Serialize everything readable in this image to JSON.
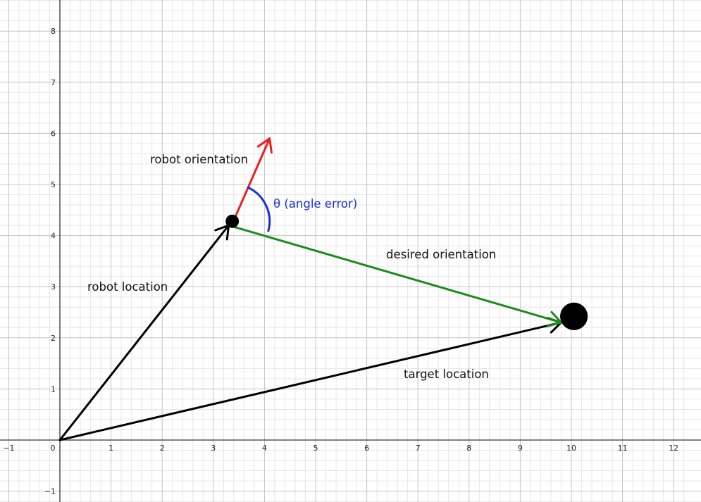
{
  "axes": {
    "x_ticks": [
      "−1",
      "0",
      "1",
      "2",
      "3",
      "4",
      "5",
      "6",
      "7",
      "8",
      "9",
      "10",
      "11",
      "12"
    ],
    "y_ticks": [
      "−1",
      "1",
      "2",
      "3",
      "4",
      "5",
      "6",
      "7",
      "8"
    ],
    "xlim": [
      -1.17,
      12.38
    ],
    "ylim": [
      -1.2,
      8.6
    ],
    "minor_grid_per_unit": 5
  },
  "vectors": [
    {
      "id": "robot-location",
      "from": [
        0,
        0
      ],
      "to": [
        3.3,
        4.2
      ],
      "color": "#000000"
    },
    {
      "id": "target-location",
      "from": [
        0,
        0
      ],
      "to": [
        9.8,
        2.3
      ],
      "color": "#000000"
    },
    {
      "id": "desired-orientation",
      "from": [
        3.3,
        4.2
      ],
      "to": [
        9.8,
        2.3
      ],
      "color": "#1a8c1a"
    },
    {
      "id": "robot-orientation",
      "from": [
        3.4,
        4.3
      ],
      "to": [
        4.1,
        5.9
      ],
      "color": "#e8211c"
    }
  ],
  "points": [
    {
      "id": "robot",
      "at": [
        3.37,
        4.28
      ],
      "radius": 0.13
    },
    {
      "id": "target",
      "at": [
        10.05,
        2.42
      ],
      "radius": 0.27
    }
  ],
  "angle_arc": {
    "center": [
      3.37,
      4.28
    ],
    "color": "#1f2fd6"
  },
  "labels": {
    "robot_orientation": "robot orientation",
    "angle_error": "θ (angle error)",
    "desired_orientation": "desired orientation",
    "robot_location": "robot location",
    "target_location": "target location"
  },
  "colors": {
    "grid_minor": "#e6e6e6",
    "grid_major": "#c4c4c4",
    "axis": "#333333",
    "robot_orientation": "#e8211c",
    "desired_orientation": "#1a8c1a",
    "angle": "#1f2fd6",
    "vectors": "#000000"
  }
}
